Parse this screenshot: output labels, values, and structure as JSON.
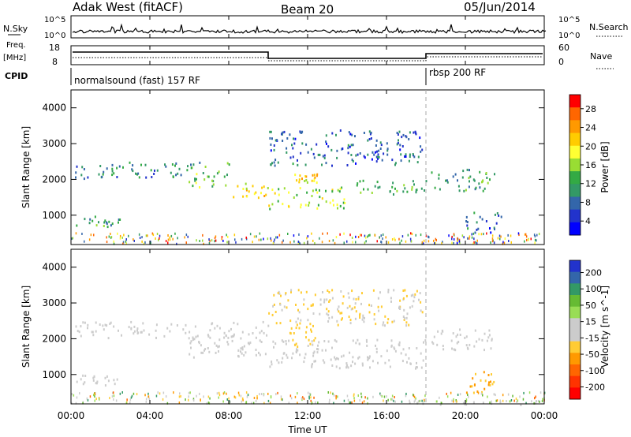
{
  "header": {
    "station": "Adak West (fitACF)",
    "beam": "Beam 20",
    "date": "05/Jun/2014"
  },
  "sky_panel": {
    "left_label": "N.Sky",
    "right_label": "N.Search",
    "ticks": [
      "10^5",
      "10^0"
    ]
  },
  "freq_panel": {
    "left_label_1": "Freq.",
    "left_label_2": "[MHz]",
    "left_ticks": [
      "18",
      "8"
    ],
    "right_label": "Nave",
    "right_ticks": [
      "60",
      "0"
    ]
  },
  "cpid": {
    "label": "CPID",
    "segments": [
      {
        "name": "normalsound (fast) 157 RF",
        "start_hour": 0,
        "end_hour": 18
      },
      {
        "name": "rbsp 200 RF",
        "start_hour": 18,
        "end_hour": 24
      }
    ]
  },
  "x_axis": {
    "label": "Time UT",
    "ticks": [
      "00:00",
      "04:00",
      "08:00",
      "12:00",
      "16:00",
      "20:00",
      "00:00"
    ]
  },
  "power_panel": {
    "ylabel": "Slant Range [km]",
    "yticks": [
      "4000",
      "3000",
      "2000",
      "1000"
    ],
    "colorbar_label": "Power [dB]",
    "colorbar_ticks": [
      "28",
      "24",
      "20",
      "16",
      "12",
      "8",
      "4"
    ],
    "colors": [
      "#ff0000",
      "#ff6600",
      "#ff9900",
      "#ffcc00",
      "#ffff33",
      "#99dd33",
      "#33aa44",
      "#339966",
      "#3366aa",
      "#2233cc",
      "#0000ff"
    ]
  },
  "velocity_panel": {
    "ylabel": "Slant Range [km]",
    "yticks": [
      "4000",
      "3000",
      "2000",
      "1000"
    ],
    "colorbar_label": "Velocity [m s^-1]",
    "colorbar_ticks": [
      "200",
      "100",
      "50",
      "15",
      "-15",
      "-50",
      "-100",
      "-200"
    ],
    "colors": [
      "#2233cc",
      "#3366aa",
      "#339966",
      "#66bb33",
      "#99dd55",
      "#cccccc",
      "#cccccc",
      "#ffcc33",
      "#ff9900",
      "#ff6600",
      "#ff3300",
      "#ff0000"
    ]
  },
  "chart_data": {
    "type": "heatmap",
    "x_range_hours": [
      0,
      24
    ],
    "y_range_km": [
      180,
      4500
    ],
    "power_bands": [
      {
        "t": [
          0.2,
          5.8
        ],
        "r": [
          2050,
          2500
        ],
        "db": 8
      },
      {
        "t": [
          5.8,
          8.0
        ],
        "r": [
          1800,
          2500
        ],
        "db": 12
      },
      {
        "t": [
          8.0,
          10.0
        ],
        "r": [
          1500,
          1950
        ],
        "db": 18
      },
      {
        "t": [
          10.0,
          14.0
        ],
        "r": [
          1200,
          1800
        ],
        "db": 16
      },
      {
        "t": [
          14.0,
          18.0
        ],
        "r": [
          1600,
          2000
        ],
        "db": 12
      },
      {
        "t": [
          0.2,
          2.5
        ],
        "r": [
          700,
          1000
        ],
        "db": 10
      },
      {
        "t": [
          10.0,
          17.8
        ],
        "r": [
          2400,
          3400
        ],
        "db": 6
      },
      {
        "t": [
          18.2,
          21.5
        ],
        "r": [
          1700,
          2300
        ],
        "db": 10
      },
      {
        "t": [
          11.0,
          12.5
        ],
        "r": [
          1900,
          2200
        ],
        "db": 20
      },
      {
        "t": [
          20.0,
          21.8
        ],
        "r": [
          500,
          1100
        ],
        "db": 6
      }
    ],
    "velocity_bands": [
      {
        "t": [
          0.2,
          5.8
        ],
        "r": [
          2050,
          2500
        ],
        "v": 0
      },
      {
        "t": [
          5.8,
          10.0
        ],
        "r": [
          1500,
          2500
        ],
        "v": 0
      },
      {
        "t": [
          10.0,
          18.0
        ],
        "r": [
          1200,
          2000
        ],
        "v": -10
      },
      {
        "t": [
          0.2,
          2.5
        ],
        "r": [
          700,
          1000
        ],
        "v": 0
      },
      {
        "t": [
          10.0,
          17.8
        ],
        "r": [
          2400,
          3400
        ],
        "v": -40
      },
      {
        "t": [
          11.0,
          12.5
        ],
        "r": [
          1800,
          2400
        ],
        "v": -60
      },
      {
        "t": [
          18.2,
          21.5
        ],
        "r": [
          1700,
          2300
        ],
        "v": 0
      },
      {
        "t": [
          20.0,
          21.8
        ],
        "r": [
          500,
          1100
        ],
        "v": -80
      },
      {
        "t": [
          17.0,
          24.0
        ],
        "r": [
          180,
          300
        ],
        "v": 30
      }
    ]
  }
}
